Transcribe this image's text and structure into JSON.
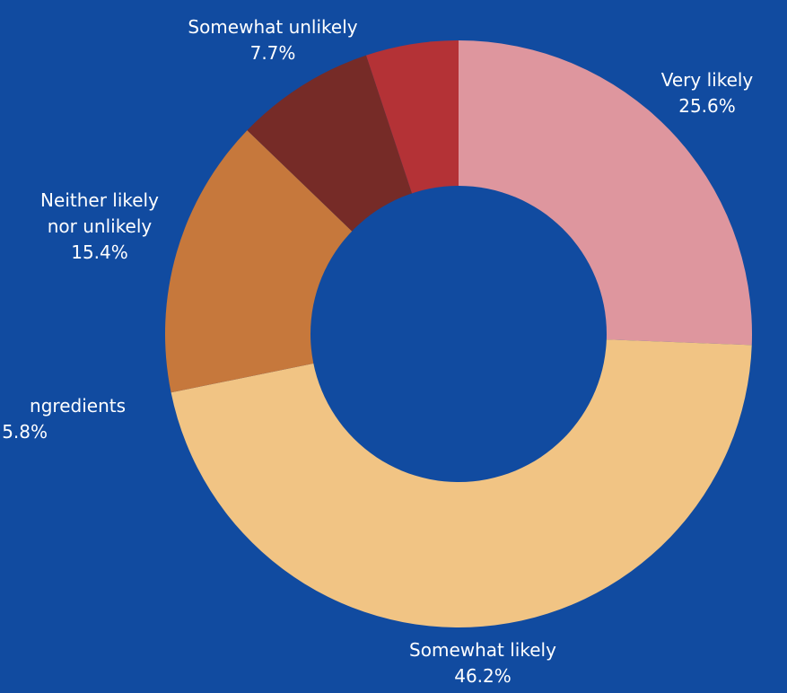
{
  "background_color": "#114ba0",
  "chart_data": {
    "type": "pie",
    "variant": "donut",
    "title": "",
    "slices": [
      {
        "label": "Very likely",
        "value": 25.6,
        "value_label": "25.6%",
        "color": "#de969e"
      },
      {
        "label": "Somewhat likely",
        "value": 46.2,
        "value_label": "46.2%",
        "color": "#f1c484"
      },
      {
        "label": "Neither likely nor unlikely",
        "label_lines": [
          "Neither likely",
          "nor unlikely"
        ],
        "value": 15.4,
        "value_label": "15.4%",
        "color": "#c6783c"
      },
      {
        "label": "Somewhat unlikely",
        "value": 7.7,
        "value_label": "7.7%",
        "color": "#762b27"
      },
      {
        "label": "",
        "value": 5.1,
        "value_label": "",
        "color": "#b43236"
      }
    ],
    "partial_label": {
      "text": "ngredients",
      "value_label": "5.8%"
    },
    "legend": "none"
  }
}
